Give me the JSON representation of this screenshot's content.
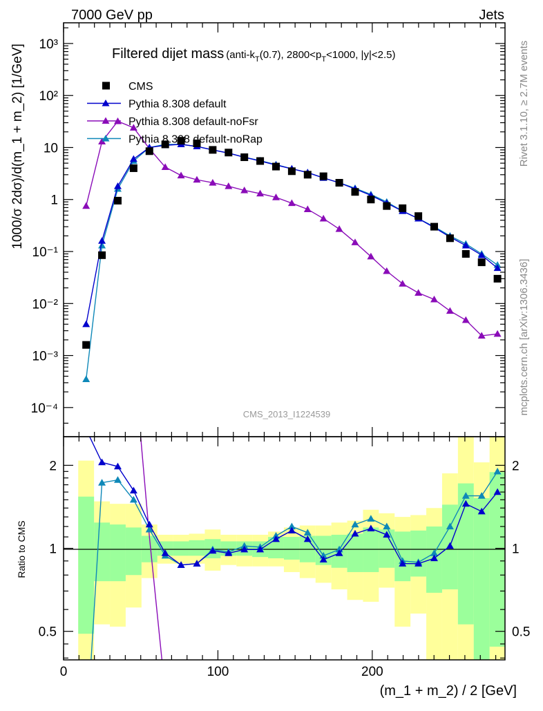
{
  "header": {
    "beam": "7000 GeV pp",
    "process": "Jets",
    "rivet": "Rivet 3.1.10, ≥ 2.7M events",
    "source": "mcplots.cern.ch [arXiv:1306.3436]",
    "analysis": "CMS_2013_I1224539"
  },
  "colors": {
    "cms": "#000000",
    "default": "#0000cc",
    "noFsr": "#8a0cb8",
    "noRap": "#0e88b8",
    "band_inner": "#9bff9b",
    "band_outer": "#ffff9b"
  },
  "chart_data": [
    {
      "type": "line",
      "title": {
        "main": "Filtered dijet mass",
        "p1": "(anti-k",
        "s1": "T",
        "p2": "(0.7), 2800<p",
        "s2": "T",
        "p3": "<1000, |y|<2.5)"
      },
      "ylabel": "1000/σ 2dσ)/d(m_1 + m_2) [1/GeV]",
      "yscale": "log",
      "ylim": [
        2.75e-05,
        2500
      ],
      "xlim": [
        0,
        286
      ],
      "bin_start": 9.5,
      "bin_width": 10.25,
      "yticks": [
        {
          "v": 1000,
          "label": "10³"
        },
        {
          "v": 100,
          "label": "10²"
        },
        {
          "v": 10,
          "label": "10"
        },
        {
          "v": 1,
          "label": "1"
        },
        {
          "v": 0.1,
          "label": "10⁻¹"
        },
        {
          "v": 0.01,
          "label": "10⁻²"
        },
        {
          "v": 0.001,
          "label": "10⁻³"
        },
        {
          "v": 0.0001,
          "label": "10⁻⁴"
        }
      ],
      "legend_position": "top-left",
      "series": [
        {
          "key": "cms",
          "name": "CMS",
          "marker": "square",
          "values": [
            0.0016,
            0.085,
            0.95,
            4.0,
            8.5,
            11.5,
            13.5,
            12.0,
            9.0,
            8.0,
            6.5,
            5.5,
            4.3,
            3.5,
            3.0,
            2.8,
            2.1,
            1.4,
            1.0,
            0.75,
            0.68,
            0.48,
            0.3,
            0.18,
            0.09,
            0.062,
            0.03
          ]
        },
        {
          "key": "default",
          "name": "Pythia 8.308 default",
          "marker": "triangle",
          "values": [
            0.004,
            0.16,
            1.8,
            6.0,
            10.0,
            11.0,
            11.5,
            10.5,
            9.0,
            7.8,
            6.5,
            5.5,
            4.6,
            3.9,
            3.3,
            2.6,
            2.1,
            1.6,
            1.2,
            0.85,
            0.6,
            0.43,
            0.29,
            0.19,
            0.13,
            0.085,
            0.048
          ]
        },
        {
          "key": "noFsr",
          "name": "Pythia 8.308 default-noFsr",
          "marker": "triangle",
          "values": [
            0.75,
            13,
            32,
            24,
            9.5,
            4.2,
            2.9,
            2.4,
            2.1,
            1.8,
            1.5,
            1.3,
            1.1,
            0.85,
            0.65,
            0.43,
            0.27,
            0.15,
            0.08,
            0.042,
            0.024,
            0.016,
            0.012,
            0.0072,
            0.0048,
            0.0024,
            0.0026
          ]
        },
        {
          "key": "noRap",
          "name": "Pythia 8.308 default-noRap",
          "marker": "triangle",
          "values": [
            0.00035,
            0.13,
            1.6,
            5.5,
            10.0,
            11.5,
            11.5,
            10.5,
            9.0,
            7.8,
            6.5,
            5.6,
            4.7,
            3.9,
            3.3,
            2.6,
            2.1,
            1.65,
            1.25,
            0.9,
            0.6,
            0.43,
            0.3,
            0.2,
            0.14,
            0.09,
            0.055
          ]
        }
      ]
    },
    {
      "type": "line",
      "ylabel": "Ratio to CMS",
      "xlabel": "(m_1 + m_2) / 2 [GeV]",
      "yscale": "log",
      "ylim": [
        0.394,
        2.54
      ],
      "xlim": [
        0,
        286
      ],
      "reference": 1,
      "yticks": [
        {
          "v": 2,
          "label": "2"
        },
        {
          "v": 1,
          "label": "1"
        },
        {
          "v": 0.5,
          "label": "0.5"
        }
      ],
      "xticks": [
        {
          "v": 0,
          "label": "0"
        },
        {
          "v": 100,
          "label": "100"
        },
        {
          "v": 200,
          "label": "200"
        }
      ],
      "band_inner_hi": [
        1.54,
        1.24,
        1.22,
        1.19,
        1.11,
        1.06,
        1.06,
        1.07,
        1.08,
        1.06,
        1.06,
        1.06,
        1.1,
        1.1,
        1.11,
        1.11,
        1.12,
        1.13,
        1.19,
        1.17,
        1.15,
        1.16,
        1.2,
        1.44,
        1.72,
        1.52,
        1.89
      ],
      "band_inner_lo": [
        0.49,
        0.76,
        0.76,
        0.8,
        0.89,
        0.94,
        0.94,
        0.94,
        0.92,
        0.94,
        0.94,
        0.93,
        0.92,
        0.91,
        0.89,
        0.87,
        0.85,
        0.82,
        0.82,
        0.85,
        0.76,
        0.79,
        0.69,
        0.71,
        0.53,
        0.35,
        0.44
      ],
      "band_outer_hi": [
        2.08,
        1.48,
        1.45,
        1.45,
        1.22,
        1.12,
        1.12,
        1.13,
        1.17,
        1.12,
        1.12,
        1.12,
        1.15,
        1.19,
        1.21,
        1.21,
        1.24,
        1.26,
        1.38,
        1.34,
        1.3,
        1.32,
        1.4,
        1.87,
        2.6,
        2.05,
        2.6
      ],
      "band_outer_lo": [
        0.3,
        0.53,
        0.52,
        0.61,
        0.78,
        0.88,
        0.88,
        0.88,
        0.83,
        0.87,
        0.86,
        0.86,
        0.86,
        0.82,
        0.78,
        0.75,
        0.71,
        0.65,
        0.64,
        0.72,
        0.52,
        0.58,
        0.3,
        0.3,
        0.3,
        0.35,
        0.3
      ],
      "series": [
        {
          "key": "default",
          "values": [
            2.7,
            2.05,
            1.98,
            1.62,
            1.22,
            0.96,
            0.87,
            0.88,
            0.98,
            0.96,
            0.99,
            0.99,
            1.08,
            1.16,
            1.08,
            0.91,
            0.96,
            1.13,
            1.18,
            1.12,
            0.88,
            0.88,
            0.92,
            1.02,
            1.45,
            1.36,
            1.6
          ]
        },
        {
          "key": "noFsr",
          "values": [
            100,
            100,
            50,
            5.0,
            1.1,
            0.3,
            0.2,
            0.2,
            0.2,
            0.2,
            0.2,
            0.2,
            0.2,
            0.2,
            0.2,
            0.2,
            0.2,
            0.2,
            0.2,
            0.2,
            0.2,
            0.2,
            0.2,
            0.2,
            0.2,
            0.2,
            0.2
          ]
        },
        {
          "key": "noRap",
          "values": [
            0.2,
            1.73,
            1.77,
            1.5,
            1.17,
            0.94,
            0.87,
            0.88,
            0.99,
            0.97,
            1.02,
            1.01,
            1.11,
            1.2,
            1.14,
            0.94,
            0.99,
            1.22,
            1.28,
            1.2,
            0.9,
            0.89,
            0.96,
            1.2,
            1.55,
            1.55,
            1.9
          ]
        }
      ]
    }
  ]
}
